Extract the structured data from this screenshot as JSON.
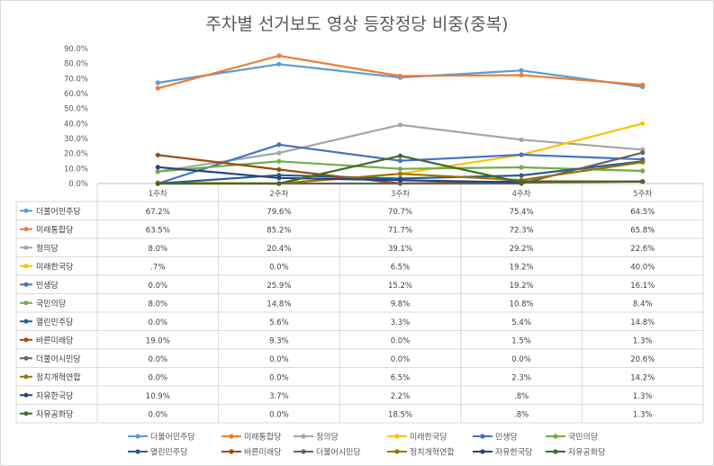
{
  "chart_data": {
    "type": "line",
    "title": "주차별 선거보도 영상 등장정당 비중(중복)",
    "categories": [
      "1주차",
      "2주차",
      "3주차",
      "4주차",
      "5주차"
    ],
    "yticks": [
      "0.0%",
      "10.0%",
      "20.0%",
      "30.0%",
      "40.0%",
      "50.0%",
      "60.0%",
      "70.0%",
      "80.0%",
      "90.0%"
    ],
    "ylim": [
      0,
      90
    ],
    "grid": false,
    "legend_position": "bottom",
    "data_table": true,
    "series": [
      {
        "name": "더불어민주당",
        "color": "#5b9bd5",
        "values": [
          67.2,
          79.6,
          70.7,
          75.4,
          64.5
        ],
        "labels": [
          "67.2%",
          "79.6%",
          "70.7%",
          "75.4%",
          "64.5%"
        ]
      },
      {
        "name": "미래통합당",
        "color": "#ed7d31",
        "values": [
          63.5,
          85.2,
          71.7,
          72.3,
          65.8
        ],
        "labels": [
          "63.5%",
          "85.2%",
          "71.7%",
          "72.3%",
          "65.8%"
        ]
      },
      {
        "name": "정의당",
        "color": "#a5a5a5",
        "values": [
          8.0,
          20.4,
          39.1,
          29.2,
          22.6
        ],
        "labels": [
          "8.0%",
          "20.4%",
          "39.1%",
          "29.2%",
          "22.6%"
        ]
      },
      {
        "name": "미래한국당",
        "color": "#ffc000",
        "values": [
          0.7,
          0.0,
          6.5,
          19.2,
          40.0
        ],
        "labels": [
          ".7%",
          "0.0%",
          "6.5%",
          "19.2%",
          "40.0%"
        ]
      },
      {
        "name": "민생당",
        "color": "#4472c4",
        "values": [
          0.0,
          25.9,
          15.2,
          19.2,
          16.1
        ],
        "labels": [
          "0.0%",
          "25.9%",
          "15.2%",
          "19.2%",
          "16.1%"
        ]
      },
      {
        "name": "국민의당",
        "color": "#70ad47",
        "values": [
          8.0,
          14.8,
          9.8,
          10.8,
          8.4
        ],
        "labels": [
          "8.0%",
          "14.8%",
          "9.8%",
          "10.8%",
          "8.4%"
        ]
      },
      {
        "name": "열린민주당",
        "color": "#255e91",
        "values": [
          0.0,
          5.6,
          3.3,
          5.4,
          14.8
        ],
        "labels": [
          "0.0%",
          "5.6%",
          "3.3%",
          "5.4%",
          "14.8%"
        ]
      },
      {
        "name": "바른미래당",
        "color": "#9e480e",
        "values": [
          19.0,
          9.3,
          0.0,
          1.5,
          1.3
        ],
        "labels": [
          "19.0%",
          "9.3%",
          "0.0%",
          "1.5%",
          "1.3%"
        ]
      },
      {
        "name": "더불어시민당",
        "color": "#636363",
        "values": [
          0.0,
          0.0,
          0.0,
          0.0,
          20.6
        ],
        "labels": [
          "0.0%",
          "0.0%",
          "0.0%",
          "0.0%",
          "20.6%"
        ]
      },
      {
        "name": "정치개혁연합",
        "color": "#997300",
        "values": [
          0.0,
          0.0,
          6.5,
          2.3,
          14.2
        ],
        "labels": [
          "0.0%",
          "0.0%",
          "6.5%",
          "2.3%",
          "14.2%"
        ]
      },
      {
        "name": "자유한국당",
        "color": "#264478",
        "values": [
          10.9,
          3.7,
          2.2,
          0.8,
          1.3
        ],
        "labels": [
          "10.9%",
          "3.7%",
          "2.2%",
          ".8%",
          "1.3%"
        ]
      },
      {
        "name": "자유공화당",
        "color": "#43682b",
        "values": [
          0.0,
          0.0,
          18.5,
          0.8,
          1.3
        ],
        "labels": [
          "0.0%",
          "0.0%",
          "18.5%",
          ".8%",
          "1.3%"
        ]
      }
    ]
  }
}
